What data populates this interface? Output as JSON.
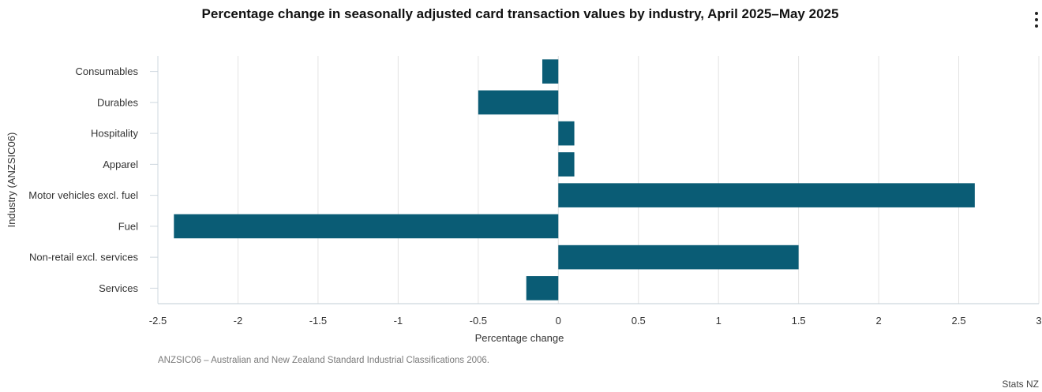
{
  "header": {
    "title": "Percentage change in seasonally adjusted card transaction values by industry, April 2025–May 2025",
    "menu_icon": "vertical-ellipsis-icon"
  },
  "chart_data": {
    "type": "bar",
    "orientation": "horizontal",
    "categories": [
      "Consumables",
      "Durables",
      "Hospitality",
      "Apparel",
      "Motor vehicles excl. fuel",
      "Fuel",
      "Non-retail excl. services",
      "Services"
    ],
    "values": [
      -0.1,
      -0.5,
      0.1,
      0.1,
      2.6,
      -2.4,
      1.5,
      -0.2
    ],
    "xlabel": "Percentage change",
    "ylabel": "Industry (ANZSIC06)",
    "xlim": [
      -2.5,
      3
    ],
    "xticks": [
      -2.5,
      -2,
      -1.5,
      -1,
      -0.5,
      0,
      0.5,
      1,
      1.5,
      2,
      2.5,
      3
    ],
    "grid": true,
    "bar_color": "#0a5c75"
  },
  "footer": {
    "note": "ANZSIC06 – Australian and New Zealand Standard Industrial Classifications 2006.",
    "credit": "Stats NZ"
  }
}
